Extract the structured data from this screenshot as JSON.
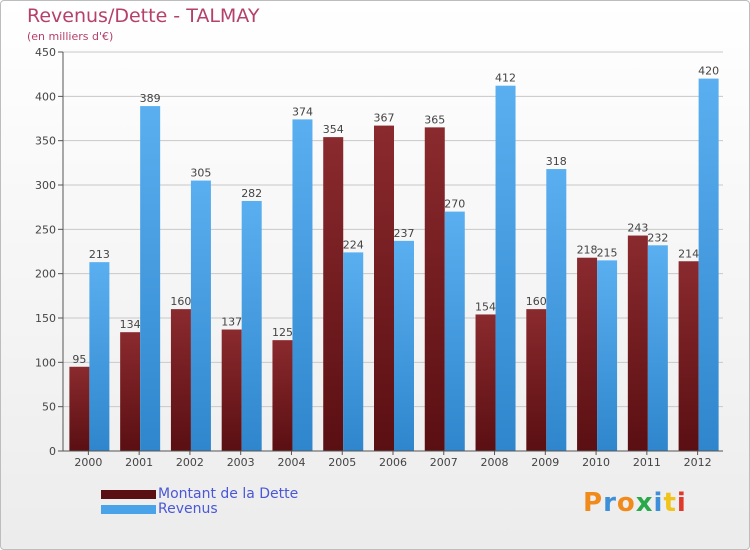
{
  "header": {
    "title": "Revenus/Dette - TALMAY",
    "subtitle": "(en milliers d'€)"
  },
  "logo": {
    "chars": [
      "P",
      "r",
      "o",
      "x",
      "i",
      "t",
      "i"
    ],
    "colors": [
      "#f08a1a",
      "#3c8fd8",
      "#f08a1a",
      "#2aa84a",
      "#3c8fd8",
      "#f0c419",
      "#e0392a"
    ]
  },
  "colors": {
    "dette": "#7b1f22",
    "revenus": "#4aa3e8",
    "axis": "#555555",
    "grid": "#c8c8c8",
    "label": "#444444"
  },
  "chart_data": {
    "type": "bar",
    "categories": [
      "2000",
      "2001",
      "2002",
      "2003",
      "2004",
      "2005",
      "2006",
      "2007",
      "2008",
      "2009",
      "2010",
      "2011",
      "2012"
    ],
    "series": [
      {
        "name": "Montant de la Dette",
        "values": [
          95,
          134,
          160,
          137,
          125,
          354,
          367,
          365,
          154,
          160,
          218,
          243,
          214
        ]
      },
      {
        "name": "Revenus",
        "values": [
          213,
          389,
          305,
          282,
          374,
          224,
          237,
          270,
          412,
          318,
          215,
          232,
          420
        ]
      }
    ],
    "yticks": [
      0,
      50,
      100,
      150,
      200,
      250,
      300,
      350,
      400,
      450
    ],
    "ylim": [
      0,
      450
    ],
    "legend_position": "bottom-left",
    "grid": true
  }
}
